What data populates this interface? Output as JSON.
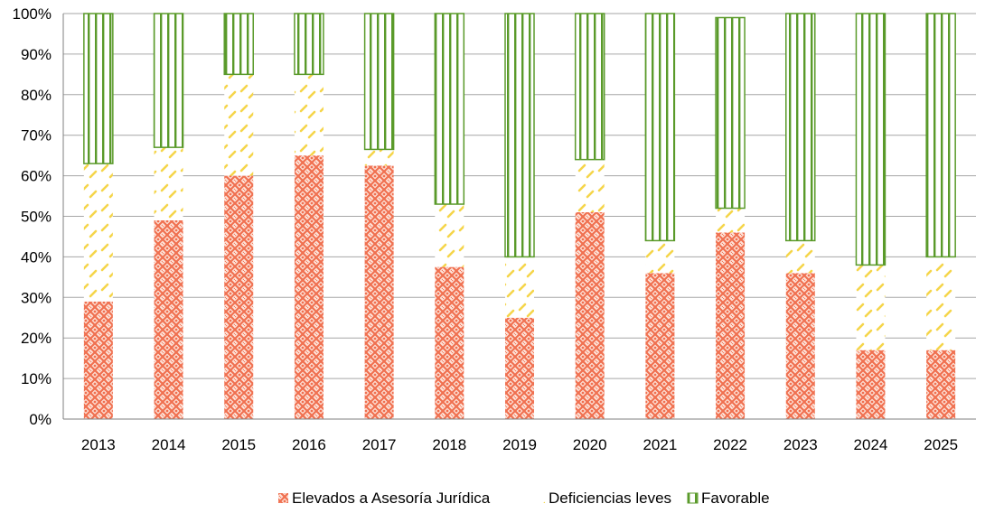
{
  "chart_data": {
    "type": "bar",
    "stacked": true,
    "categories": [
      "2013",
      "2014",
      "2015",
      "2016",
      "2017",
      "2018",
      "2019",
      "2020",
      "2021",
      "2022",
      "2023",
      "2024",
      "2025"
    ],
    "series": [
      {
        "name": "Elevados a Asesoría Jurídica",
        "color": "#f07050",
        "pattern": "woven-crosshatch",
        "values": [
          29,
          49,
          60,
          65,
          62.5,
          37.5,
          25,
          51,
          36,
          46,
          36,
          17,
          17
        ]
      },
      {
        "name": "Deficiencias leves",
        "color": "#f5d54a",
        "pattern": "dashed-diagonal",
        "values": [
          34,
          18,
          25,
          20,
          4,
          15.5,
          15,
          13,
          8,
          6,
          8,
          21,
          23
        ]
      },
      {
        "name": "Favorable",
        "color": "#5a9a2a",
        "pattern": "vertical-stripes",
        "values": [
          37,
          33,
          15,
          15,
          33.5,
          47,
          60,
          36,
          56,
          47,
          56,
          62,
          60
        ]
      }
    ],
    "ylim": [
      0,
      100
    ],
    "y_ticks": [
      "0%",
      "10%",
      "20%",
      "30%",
      "40%",
      "50%",
      "60%",
      "70%",
      "80%",
      "90%",
      "100%"
    ],
    "y_tick_values": [
      0,
      10,
      20,
      30,
      40,
      50,
      60,
      70,
      80,
      90,
      100
    ],
    "grid": true,
    "legend_position": "bottom",
    "xlabel": "",
    "ylabel": "",
    "title": ""
  }
}
